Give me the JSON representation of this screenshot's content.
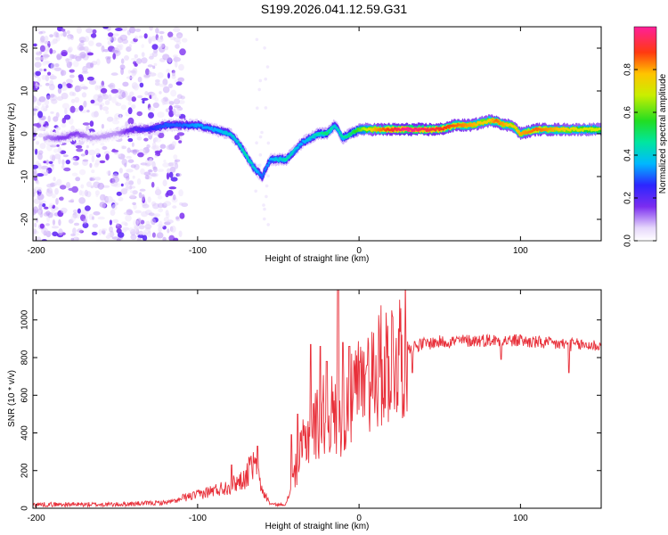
{
  "title": "S199.2026.041.12.59.G31",
  "chart_data": [
    {
      "type": "heatmap",
      "title": "S199.2026.041.12.59.G31",
      "xlabel": "Height of straight line (km)",
      "ylabel": "Frequency (Hz)",
      "xlim": [
        -202,
        150
      ],
      "ylim": [
        -25,
        25
      ],
      "x_ticks": [
        -200,
        -100,
        0,
        100
      ],
      "x_tick_labels": [
        "-200",
        "-100",
        "0",
        "100"
      ],
      "y_ticks": [
        -20,
        -10,
        0,
        10,
        20
      ],
      "y_tick_labels": [
        "-20",
        "-10",
        "0",
        "10",
        "20"
      ],
      "colorbar": {
        "label": "Normalized spectral amplitude",
        "range": [
          0,
          1
        ],
        "ticks": [
          0.0,
          0.2,
          0.4,
          0.6,
          0.8
        ],
        "tick_labels": [
          "0.0",
          "0.2",
          "0.4",
          "0.6",
          "0.8"
        ]
      },
      "ridge": {
        "height_km": [
          -195,
          -185,
          -175,
          -165,
          -150,
          -140,
          -130,
          -120,
          -110,
          -100,
          -90,
          -80,
          -75,
          -70,
          -65,
          -60,
          -55,
          -50,
          -45,
          -40,
          -35,
          -30,
          -25,
          -20,
          -15,
          -10,
          -5,
          0,
          10,
          20,
          30,
          40,
          50,
          60,
          70,
          80,
          85,
          90,
          95,
          100,
          110,
          120,
          130,
          140,
          150
        ],
        "frequency_hz": [
          -1,
          -1,
          0,
          -1,
          0,
          1,
          1,
          2,
          2,
          2,
          1,
          0,
          -2,
          -5,
          -8,
          -10,
          -6,
          -6,
          -6,
          -4,
          -2,
          -1,
          0,
          0,
          2,
          -1,
          0,
          1,
          1,
          1,
          1,
          1,
          1,
          2,
          2,
          3,
          3,
          2,
          2,
          0,
          1,
          1,
          1,
          1,
          1
        ],
        "amplitude": [
          0.1,
          0.15,
          0.15,
          0.1,
          0.1,
          0.2,
          0.25,
          0.3,
          0.3,
          0.35,
          0.35,
          0.4,
          0.4,
          0.45,
          0.4,
          0.3,
          0.35,
          0.4,
          0.45,
          0.4,
          0.35,
          0.4,
          0.45,
          0.5,
          0.4,
          0.45,
          0.5,
          0.6,
          0.8,
          0.9,
          1.0,
          0.95,
          0.9,
          0.85,
          0.8,
          0.75,
          0.85,
          0.8,
          0.75,
          0.8,
          0.85,
          0.8,
          0.75,
          0.7,
          0.7
        ]
      },
      "noise_region_km": [
        -202,
        -108
      ]
    },
    {
      "type": "line",
      "xlabel": "Height of straight line (km)",
      "ylabel": "SNR (10 * v/v)",
      "xlim": [
        -202,
        150
      ],
      "ylim": [
        0,
        1160
      ],
      "x_ticks": [
        -200,
        -100,
        0,
        100
      ],
      "x_tick_labels": [
        "-200",
        "-100",
        "0",
        "100"
      ],
      "y_ticks": [
        0,
        200,
        400,
        600,
        800,
        1000
      ],
      "y_tick_labels": [
        "0",
        "200",
        "400",
        "600",
        "800",
        "1000"
      ],
      "color": "#e8303a",
      "envelope": {
        "x": [
          -202,
          -150,
          -120,
          -100,
          -90,
          -80,
          -70,
          -65,
          -60,
          -55,
          -50,
          -45,
          -40,
          -35,
          -30,
          -25,
          -20,
          -15,
          -10,
          -5,
          0,
          5,
          10,
          15,
          20,
          25,
          30,
          40,
          50,
          60,
          80,
          100,
          120,
          150
        ],
        "y": [
          20,
          20,
          30,
          60,
          80,
          100,
          140,
          200,
          80,
          20,
          15,
          20,
          180,
          320,
          420,
          460,
          520,
          480,
          500,
          560,
          640,
          700,
          730,
          760,
          800,
          830,
          860,
          880,
          890,
          895,
          900,
          895,
          880,
          870
        ]
      },
      "spikes": [
        {
          "x": -79,
          "y": 230
        },
        {
          "x": -68,
          "y": 270
        },
        {
          "x": -63,
          "y": 330
        },
        {
          "x": -42,
          "y": 390
        },
        {
          "x": -38,
          "y": 500
        },
        {
          "x": -30,
          "y": 870
        },
        {
          "x": -24,
          "y": 860
        },
        {
          "x": -20,
          "y": 780
        },
        {
          "x": -13,
          "y": 1160
        },
        {
          "x": -10,
          "y": 880
        },
        {
          "x": -6,
          "y": 860
        },
        {
          "x": 5,
          "y": 760
        },
        {
          "x": 33,
          "y": 720
        },
        {
          "x": 88,
          "y": 790
        },
        {
          "x": 100,
          "y": 920
        },
        {
          "x": 130,
          "y": 720
        }
      ]
    }
  ]
}
